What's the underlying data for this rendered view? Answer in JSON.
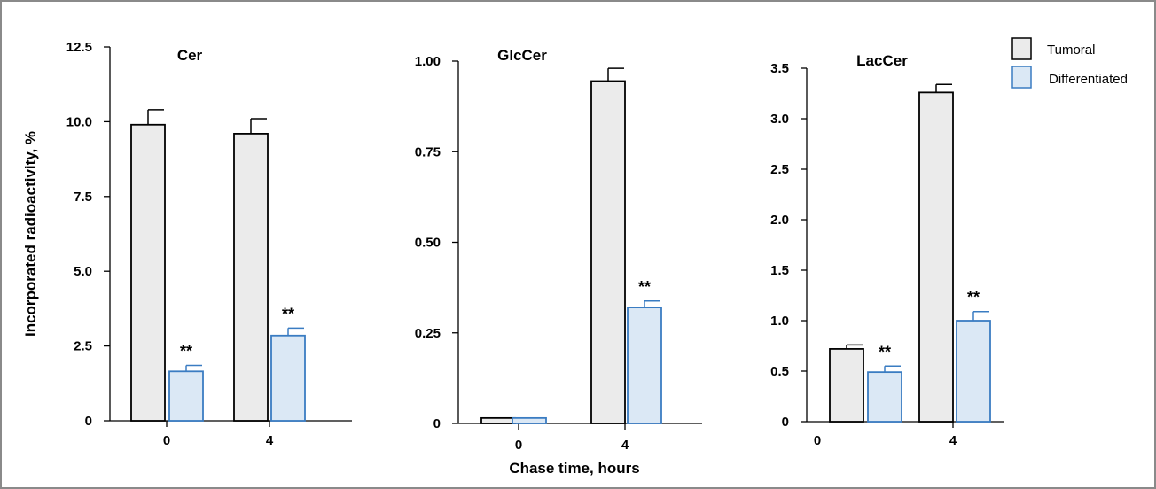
{
  "chart_data": {
    "type": "bar",
    "ylabel": "Incorporated radioactivity, %",
    "xlabel": "Chase time, hours",
    "legend": {
      "position": "top-right",
      "entries": [
        {
          "name": "Tumoral",
          "color": "#ebebeb",
          "edge": "#000000"
        },
        {
          "name": "Differentiated",
          "color": "#dbe8f5",
          "edge": "#3a7cc2"
        }
      ]
    },
    "significance_marker": "**",
    "grid": false,
    "panels": [
      {
        "title": "Cer",
        "categories": [
          "0",
          "4"
        ],
        "ylim": [
          0,
          12.5
        ],
        "yticks": [
          "0",
          "2.5",
          "5.0",
          "7.5",
          "10.0",
          "12.5"
        ],
        "ytick_values": [
          0,
          2.5,
          5,
          7.5,
          10,
          12.5
        ],
        "series": [
          {
            "name": "Tumoral",
            "values": [
              9.9,
              9.6
            ],
            "errors": [
              0.5,
              0.5
            ],
            "significant": [
              false,
              false
            ]
          },
          {
            "name": "Differentiated",
            "values": [
              1.65,
              2.85
            ],
            "errors": [
              0.2,
              0.25
            ],
            "significant": [
              true,
              true
            ]
          }
        ]
      },
      {
        "title": "GlcCer",
        "categories": [
          "0",
          "4"
        ],
        "ylim": [
          0,
          1.0
        ],
        "yticks": [
          "0",
          "0.25",
          "0.50",
          "0.75",
          "1.00"
        ],
        "ytick_values": [
          0,
          0.25,
          0.5,
          0.75,
          1.0
        ],
        "series": [
          {
            "name": "Tumoral",
            "values": [
              0.015,
              0.945
            ],
            "errors": [
              0,
              0.035
            ],
            "significant": [
              false,
              false
            ]
          },
          {
            "name": "Differentiated",
            "values": [
              0.015,
              0.32
            ],
            "errors": [
              0,
              0.018
            ],
            "significant": [
              false,
              true
            ]
          }
        ]
      },
      {
        "title": "LacCer",
        "categories": [
          "0",
          "4"
        ],
        "ylim": [
          0,
          3.5
        ],
        "yticks": [
          "0",
          "0.5",
          "1.0",
          "1.5",
          "2.0",
          "2.5",
          "3.0",
          "3.5"
        ],
        "ytick_values": [
          0,
          0.5,
          1,
          1.5,
          2,
          2.5,
          3,
          3.5
        ],
        "series": [
          {
            "name": "Tumoral",
            "values": [
              0.72,
              3.26
            ],
            "errors": [
              0.04,
              0.08
            ],
            "significant": [
              false,
              false
            ]
          },
          {
            "name": "Differentiated",
            "values": [
              0.49,
              1.0
            ],
            "errors": [
              0.06,
              0.09
            ],
            "significant": [
              true,
              true
            ]
          }
        ]
      }
    ]
  }
}
